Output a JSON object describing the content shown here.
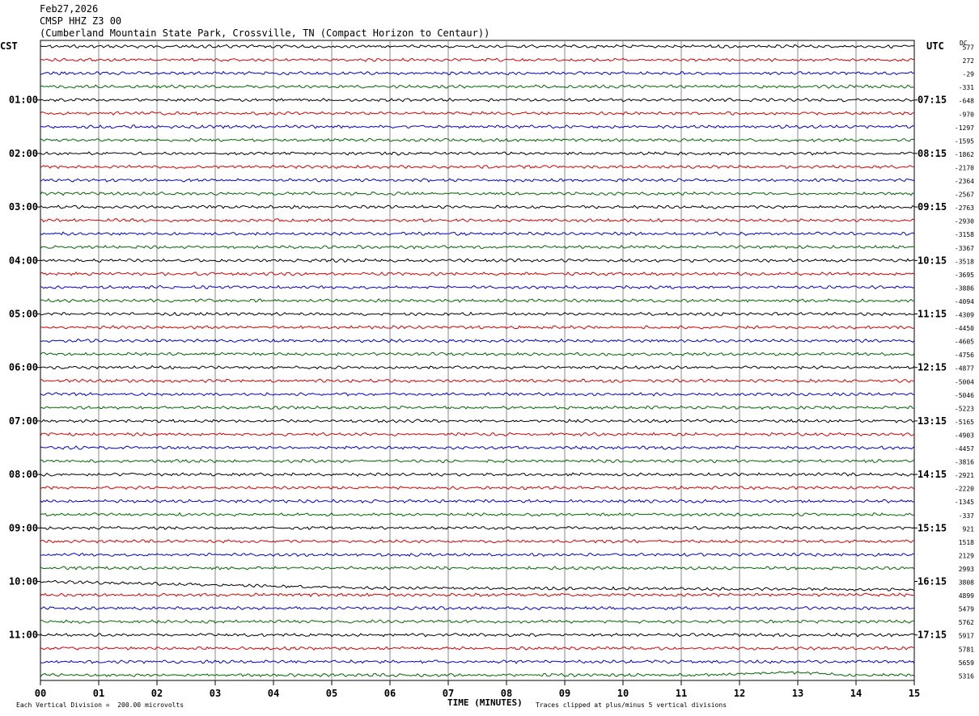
{
  "header": {
    "date": "Feb27,2026",
    "station": "CMSP HHZ Z3 00",
    "location": "(Cumberland Mountain State Park, Crossville, TN (Compact Horizon to Centaur))"
  },
  "left_tz": "CST",
  "right_tz": "UTC",
  "dc_label": "DC",
  "footer": {
    "scale_note": "Each Vertical Division =  200.00 microvolts",
    "clip_note": "Traces clipped at plus/minus 5 vertical divisions"
  },
  "chart_data": {
    "type": "line",
    "title": "CMSP HHZ Z3 00",
    "xlabel": "TIME (MINUTES)",
    "xlim": [
      0,
      15
    ],
    "x_ticks": [
      "00",
      "01",
      "02",
      "03",
      "04",
      "05",
      "06",
      "07",
      "08",
      "09",
      "10",
      "11",
      "12",
      "13",
      "14",
      "15"
    ],
    "trace_colors": [
      "#000000",
      "#d40000",
      "#0000cc",
      "#006600"
    ],
    "rows_per_hour": 4,
    "left_hour_labels": [
      "01:00",
      "02:00",
      "03:00",
      "04:00",
      "05:00",
      "06:00",
      "07:00",
      "08:00",
      "09:00",
      "10:00",
      "11:00"
    ],
    "right_hour_labels": [
      "07:15",
      "08:15",
      "09:15",
      "10:15",
      "11:15",
      "12:15",
      "13:15",
      "14:15",
      "15:15",
      "16:15",
      "17:15"
    ],
    "dc_offsets": [
      "577",
      "272",
      "-29",
      "-331",
      "-648",
      "-970",
      "-1297",
      "-1595",
      "-1862",
      "-2170",
      "-2364",
      "-2567",
      "-2763",
      "-2930",
      "-3158",
      "-3367",
      "-3518",
      "-3695",
      "-3886",
      "-4094",
      "-4309",
      "-4450",
      "-4605",
      "-4756",
      "-4877",
      "-5004",
      "-5046",
      "-5223",
      "-5165",
      "-4903",
      "-4457",
      "-3816",
      "-2921",
      "-2220",
      "-1345",
      "-337",
      "921",
      "1518",
      "2129",
      "2993",
      "3808",
      "4899",
      "5479",
      "5762",
      "5917",
      "5781",
      "5659",
      "5316"
    ]
  }
}
